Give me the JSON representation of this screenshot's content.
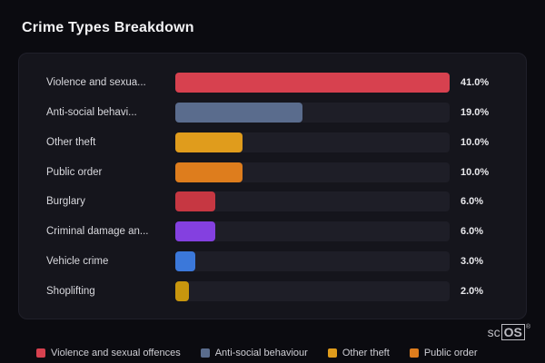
{
  "title": "Crime Types Breakdown",
  "chart_data": {
    "type": "bar",
    "orientation": "horizontal",
    "title": "Crime Types Breakdown",
    "categories": [
      "Violence and sexua...",
      "Anti-social behavi...",
      "Other theft",
      "Public order",
      "Burglary",
      "Criminal damage an...",
      "Vehicle crime",
      "Shoplifting"
    ],
    "values": [
      41.0,
      19.0,
      10.0,
      10.0,
      6.0,
      6.0,
      3.0,
      2.0
    ],
    "value_labels": [
      "41.0%",
      "19.0%",
      "10.0%",
      "10.0%",
      "6.0%",
      "6.0%",
      "3.0%",
      "2.0%"
    ],
    "bar_colors": [
      "#d7414f",
      "#5a6c8d",
      "#e09c1c",
      "#de7d1d",
      "#c63742",
      "#8440e0",
      "#3b78da",
      "#c8960e"
    ],
    "max_value": 41.0,
    "track_color": "#1e1e27",
    "legend_position": "bottom",
    "legend": [
      {
        "label": "Violence and sexual offences",
        "color": "#d7414f"
      },
      {
        "label": "Anti-social behaviour",
        "color": "#5a6c8d"
      },
      {
        "label": "Other theft",
        "color": "#e09c1c"
      },
      {
        "label": "Public order",
        "color": "#de7d1d"
      }
    ]
  },
  "watermark": {
    "prefix": "sc",
    "boxed": "OS",
    "reg": "®"
  }
}
